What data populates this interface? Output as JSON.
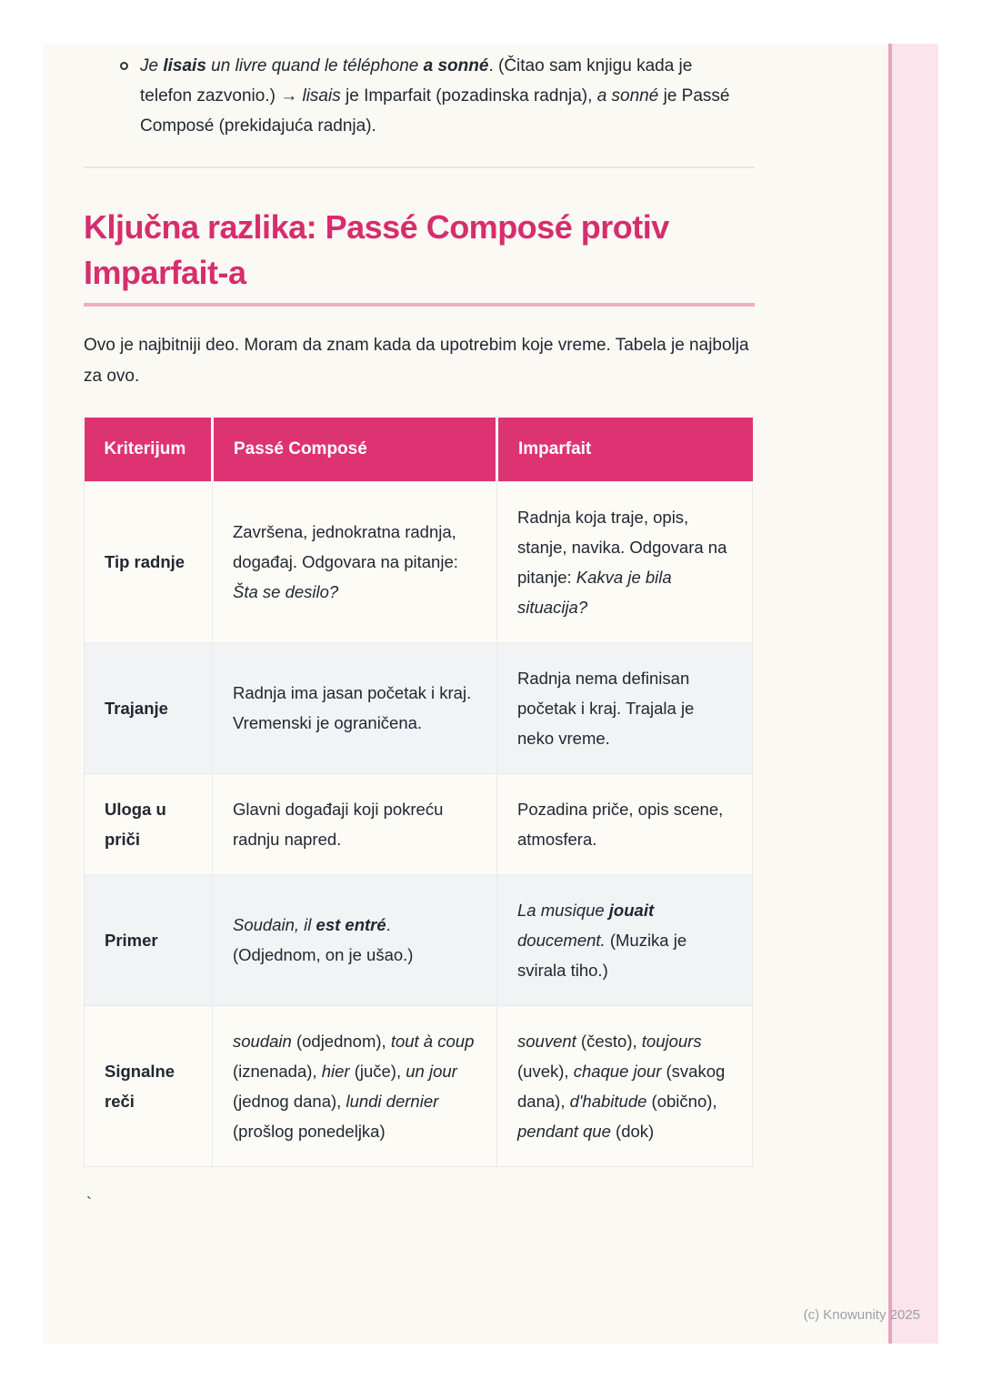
{
  "colors": {
    "brand_pink": "#D62D6E",
    "header_bg": "#DE3372",
    "underline_pink": "#ECAFC5",
    "stripe_line": "#E8A3BA",
    "stripe_panel": "#FBE4EB",
    "card_bg": "#FBF9F3",
    "row_odd": "#FCFBF6",
    "row_even": "#F1F3F5",
    "text": "#212832"
  },
  "page": {
    "footer": "(c) Knowunity 2025",
    "stray_char": "`"
  },
  "bullet_item": {
    "runs": [
      {
        "t": "Je ",
        "i": true
      },
      {
        "t": "lisais",
        "i": true,
        "b": true
      },
      {
        "t": " un livre quand le téléphone ",
        "i": true
      },
      {
        "t": "a sonné",
        "i": true,
        "b": true
      },
      {
        "t": ". (Čitao sam knjigu kada je telefon zazvonio.) → "
      },
      {
        "t": "lisais",
        "i": true
      },
      {
        "t": " je Imparfait (pozadinska radnja), "
      },
      {
        "t": "a sonné",
        "i": true
      },
      {
        "t": " je Passé Composé (prekidajuća radnja)."
      }
    ]
  },
  "heading": {
    "text": "Ključna razlika: Passé Composé protiv Imparfait-a"
  },
  "intro": "Ovo je najbitniji deo. Moram da znam kada da upotrebim koje vreme. Tabela je najbolja za ovo.",
  "table": {
    "headers": [
      "Kriterijum",
      "Passé Composé",
      "Imparfait"
    ],
    "rows": [
      {
        "label": "Tip radnje",
        "passe": [
          {
            "t": "Završena, jednokratna radnja, događaj. Odgovara na pitanje: "
          },
          {
            "t": "Šta se desilo?",
            "i": true
          }
        ],
        "imparfait": [
          {
            "t": "Radnja koja traje, opis, stanje, navika. Odgovara na pitanje: "
          },
          {
            "t": "Kakva je bila situacija?",
            "i": true
          }
        ]
      },
      {
        "label": "Trajanje",
        "passe": [
          {
            "t": "Radnja ima jasan početak i kraj. Vremenski je ograničena."
          }
        ],
        "imparfait": [
          {
            "t": "Radnja nema definisan početak i kraj. Trajala je neko vreme."
          }
        ]
      },
      {
        "label": "Uloga u priči",
        "passe": [
          {
            "t": "Glavni događaji koji pokreću radnju napred."
          }
        ],
        "imparfait": [
          {
            "t": "Pozadina priče, opis scene, atmosfera."
          }
        ]
      },
      {
        "label": "Primer",
        "passe": [
          {
            "t": "Soudain, il ",
            "i": true
          },
          {
            "t": "est entré",
            "i": true,
            "b": true
          },
          {
            "t": ". (Odjednom, on je ušao.)"
          }
        ],
        "imparfait": [
          {
            "t": "La musique ",
            "i": true
          },
          {
            "t": "jouait",
            "i": true,
            "b": true
          },
          {
            "t": " doucement.",
            "i": true
          },
          {
            "t": " (Muzika je svirala tiho.)"
          }
        ]
      },
      {
        "label": "Signalne reči",
        "passe": [
          {
            "t": "soudain",
            "i": true
          },
          {
            "t": " (odjednom), "
          },
          {
            "t": "tout à coup",
            "i": true
          },
          {
            "t": " (iznenada), "
          },
          {
            "t": "hier",
            "i": true
          },
          {
            "t": " (juče), "
          },
          {
            "t": "un jour",
            "i": true
          },
          {
            "t": " (jednog dana), "
          },
          {
            "t": "lundi dernier",
            "i": true
          },
          {
            "t": " (prošlog ponedeljka)"
          }
        ],
        "imparfait": [
          {
            "t": "souvent",
            "i": true
          },
          {
            "t": " (često), "
          },
          {
            "t": "toujours",
            "i": true
          },
          {
            "t": " (uvek), "
          },
          {
            "t": "chaque jour",
            "i": true
          },
          {
            "t": " (svakog dana), "
          },
          {
            "t": "d'habitude",
            "i": true
          },
          {
            "t": " (obično), "
          },
          {
            "t": "pendant que",
            "i": true
          },
          {
            "t": " (dok)"
          }
        ]
      }
    ]
  }
}
